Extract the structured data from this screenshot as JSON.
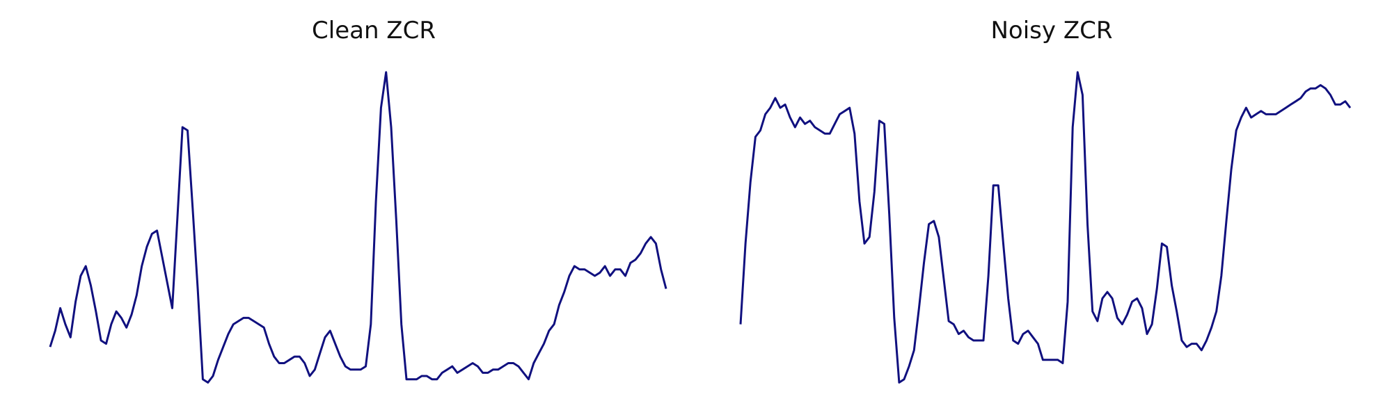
{
  "colors": {
    "line": "#10107f",
    "background": "#ffffff"
  },
  "chart_data": [
    {
      "type": "line",
      "title": "Clean ZCR",
      "axes": "off",
      "grid": false,
      "ylim": [
        0,
        1
      ],
      "x": [
        0,
        1,
        2,
        3,
        4,
        5,
        6,
        7,
        8,
        9,
        10,
        11,
        12,
        13,
        14,
        15,
        16,
        17,
        18,
        19,
        20,
        21,
        22,
        23,
        24,
        25,
        26,
        27,
        28,
        29,
        30,
        31,
        32,
        33,
        34,
        35,
        36,
        37,
        38,
        39,
        40,
        41,
        42,
        43,
        44,
        45,
        46,
        47,
        48,
        49,
        50,
        51,
        52,
        53,
        54,
        55,
        56,
        57,
        58,
        59,
        60,
        61,
        62,
        63,
        64,
        65,
        66,
        67,
        68,
        69,
        70,
        71,
        72,
        73,
        74,
        75,
        76,
        77,
        78,
        79,
        80,
        81,
        82,
        83,
        84,
        85,
        86,
        87,
        88,
        89,
        90,
        91,
        92,
        93,
        94,
        95,
        96,
        97,
        98,
        99,
        100,
        101,
        102,
        103,
        104,
        105,
        106,
        107,
        108,
        109,
        110,
        111,
        112,
        113,
        114,
        115,
        116,
        117,
        118,
        119,
        120,
        121
      ],
      "values": [
        0.12,
        0.17,
        0.24,
        0.19,
        0.15,
        0.26,
        0.34,
        0.37,
        0.31,
        0.23,
        0.14,
        0.13,
        0.19,
        0.23,
        0.21,
        0.18,
        0.22,
        0.28,
        0.37,
        0.43,
        0.47,
        0.48,
        0.4,
        0.32,
        0.24,
        0.52,
        0.8,
        0.79,
        0.55,
        0.3,
        0.02,
        0.01,
        0.03,
        0.08,
        0.12,
        0.16,
        0.19,
        0.2,
        0.21,
        0.21,
        0.2,
        0.19,
        0.18,
        0.13,
        0.09,
        0.07,
        0.07,
        0.08,
        0.09,
        0.09,
        0.07,
        0.03,
        0.05,
        0.1,
        0.15,
        0.17,
        0.13,
        0.09,
        0.06,
        0.05,
        0.05,
        0.05,
        0.06,
        0.19,
        0.57,
        0.86,
        0.97,
        0.8,
        0.51,
        0.19,
        0.02,
        0.02,
        0.02,
        0.03,
        0.03,
        0.02,
        0.02,
        0.04,
        0.05,
        0.06,
        0.04,
        0.05,
        0.06,
        0.07,
        0.06,
        0.04,
        0.04,
        0.05,
        0.05,
        0.06,
        0.07,
        0.07,
        0.06,
        0.04,
        0.02,
        0.07,
        0.1,
        0.13,
        0.17,
        0.19,
        0.25,
        0.29,
        0.34,
        0.37,
        0.36,
        0.36,
        0.35,
        0.34,
        0.35,
        0.37,
        0.34,
        0.36,
        0.36,
        0.34,
        0.38,
        0.39,
        0.41,
        0.44,
        0.46,
        0.44,
        0.36,
        0.3
      ]
    },
    {
      "type": "line",
      "title": "Noisy ZCR",
      "axes": "off",
      "grid": false,
      "ylim": [
        0,
        1
      ],
      "x": [
        0,
        1,
        2,
        3,
        4,
        5,
        6,
        7,
        8,
        9,
        10,
        11,
        12,
        13,
        14,
        15,
        16,
        17,
        18,
        19,
        20,
        21,
        22,
        23,
        24,
        25,
        26,
        27,
        28,
        29,
        30,
        31,
        32,
        33,
        34,
        35,
        36,
        37,
        38,
        39,
        40,
        41,
        42,
        43,
        44,
        45,
        46,
        47,
        48,
        49,
        50,
        51,
        52,
        53,
        54,
        55,
        56,
        57,
        58,
        59,
        60,
        61,
        62,
        63,
        64,
        65,
        66,
        67,
        68,
        69,
        70,
        71,
        72,
        73,
        74,
        75,
        76,
        77,
        78,
        79,
        80,
        81,
        82,
        83,
        84,
        85,
        86,
        87,
        88,
        89,
        90,
        91,
        92,
        93,
        94,
        95,
        96,
        97,
        98,
        99,
        100,
        101,
        102,
        103,
        104,
        105,
        106,
        107,
        108,
        109,
        110,
        111,
        112,
        113,
        114,
        115,
        116,
        117,
        118,
        119,
        120,
        121,
        122,
        123
      ],
      "values": [
        0.19,
        0.44,
        0.63,
        0.77,
        0.79,
        0.84,
        0.86,
        0.89,
        0.86,
        0.87,
        0.83,
        0.8,
        0.83,
        0.81,
        0.82,
        0.8,
        0.79,
        0.78,
        0.78,
        0.81,
        0.84,
        0.85,
        0.86,
        0.78,
        0.57,
        0.44,
        0.46,
        0.6,
        0.82,
        0.81,
        0.53,
        0.21,
        0.01,
        0.02,
        0.06,
        0.11,
        0.24,
        0.38,
        0.5,
        0.51,
        0.46,
        0.33,
        0.2,
        0.19,
        0.16,
        0.17,
        0.15,
        0.14,
        0.14,
        0.14,
        0.34,
        0.62,
        0.62,
        0.44,
        0.27,
        0.14,
        0.13,
        0.16,
        0.17,
        0.15,
        0.13,
        0.08,
        0.08,
        0.08,
        0.08,
        0.07,
        0.26,
        0.8,
        0.97,
        0.9,
        0.5,
        0.23,
        0.2,
        0.27,
        0.29,
        0.27,
        0.21,
        0.19,
        0.22,
        0.26,
        0.27,
        0.24,
        0.16,
        0.19,
        0.3,
        0.44,
        0.43,
        0.31,
        0.23,
        0.14,
        0.12,
        0.13,
        0.13,
        0.11,
        0.14,
        0.18,
        0.23,
        0.34,
        0.51,
        0.67,
        0.79,
        0.83,
        0.86,
        0.83,
        0.84,
        0.85,
        0.84,
        0.84,
        0.84,
        0.85,
        0.86,
        0.87,
        0.88,
        0.89,
        0.91,
        0.92,
        0.92,
        0.93,
        0.92,
        0.9,
        0.87,
        0.87,
        0.88,
        0.86
      ]
    }
  ]
}
